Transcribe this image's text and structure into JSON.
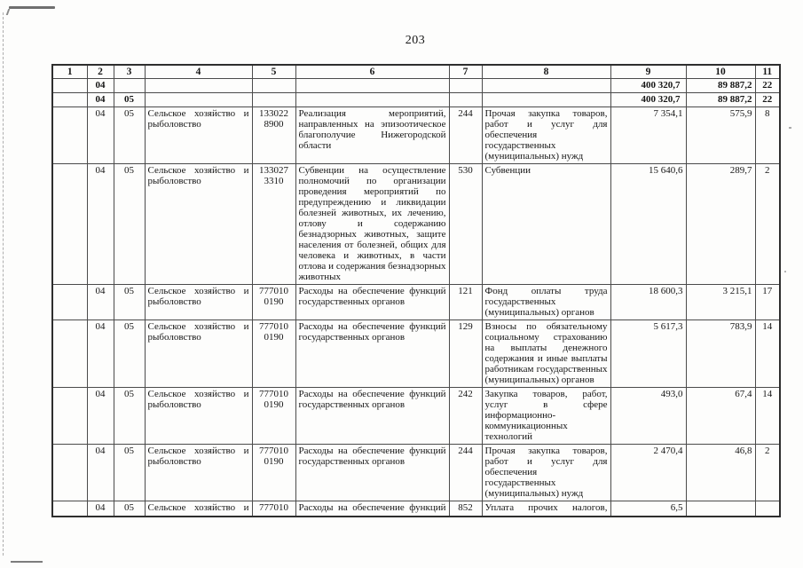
{
  "page": {
    "number": "203"
  },
  "table": {
    "columns": [
      "1",
      "2",
      "3",
      "4",
      "5",
      "6",
      "7",
      "8",
      "9",
      "10",
      "11"
    ],
    "rows": [
      {
        "bold": true,
        "cells": [
          "",
          "04",
          "",
          "",
          "",
          "",
          "",
          "",
          "400 320,7",
          "89 887,2",
          "22"
        ]
      },
      {
        "bold": true,
        "cells": [
          "",
          "04",
          "05",
          "",
          "",
          "",
          "",
          "",
          "400 320,7",
          "89 887,2",
          "22"
        ]
      },
      {
        "cells": [
          "",
          "04",
          "05",
          "Сельское хозяйство и рыболовство",
          "133022 8900",
          "Реализация мероприятий, направленных на эпизоотическое благополучие Нижегородской области",
          "244",
          "Прочая закупка товаров, работ и услуг для обеспечения государственных (муниципальных) нужд",
          "7 354,1",
          "575,9",
          "8"
        ]
      },
      {
        "cells": [
          "",
          "04",
          "05",
          "Сельское хозяйство и рыболовство",
          "133027 3310",
          "Субвенции на осуществление полномочий по организации проведения мероприятий по предупреждению и ликвидации болезней животных, их лечению, отлову и содержанию безнадзорных животных, защите населения от болезней, общих для человека и животных, в части отлова и содержания безнадзорных животных",
          "530",
          "Субвенции",
          "15 640,6",
          "289,7",
          "2"
        ]
      },
      {
        "cells": [
          "",
          "04",
          "05",
          "Сельское хозяйство и рыболовство",
          "777010 0190",
          "Расходы на обеспечение функций государственных органов",
          "121",
          "Фонд оплаты труда государственных (муниципальных) органов",
          "18 600,3",
          "3 215,1",
          "17"
        ]
      },
      {
        "cells": [
          "",
          "04",
          "05",
          "Сельское хозяйство и рыболовство",
          "777010 0190",
          "Расходы на обеспечение функций государственных органов",
          "129",
          "Взносы по обязательному социальному страхованию на выплаты денежного содержания и иные выплаты работникам государственных (муниципальных) органов",
          "5 617,3",
          "783,9",
          "14"
        ]
      },
      {
        "cells": [
          "",
          "04",
          "05",
          "Сельское хозяйство и рыболовство",
          "777010 0190",
          "Расходы на обеспечение функций государственных органов",
          "242",
          "Закупка товаров, работ, услуг в сфере информационно-коммуникационных технологий",
          "493,0",
          "67,4",
          "14"
        ]
      },
      {
        "cells": [
          "",
          "04",
          "05",
          "Сельское хозяйство и рыболовство",
          "777010 0190",
          "Расходы на обеспечение функций государственных органов",
          "244",
          "Прочая закупка товаров, работ и услуг для обеспечения государственных (муниципальных) нужд",
          "2 470,4",
          "46,8",
          "2"
        ]
      },
      {
        "clip": true,
        "cells": [
          "",
          "04",
          "05",
          "Сельское хозяйство и",
          "777010",
          "Расходы на обеспечение функций",
          "852",
          "Уплата прочих налогов,",
          "6,5",
          "",
          ""
        ]
      }
    ]
  }
}
